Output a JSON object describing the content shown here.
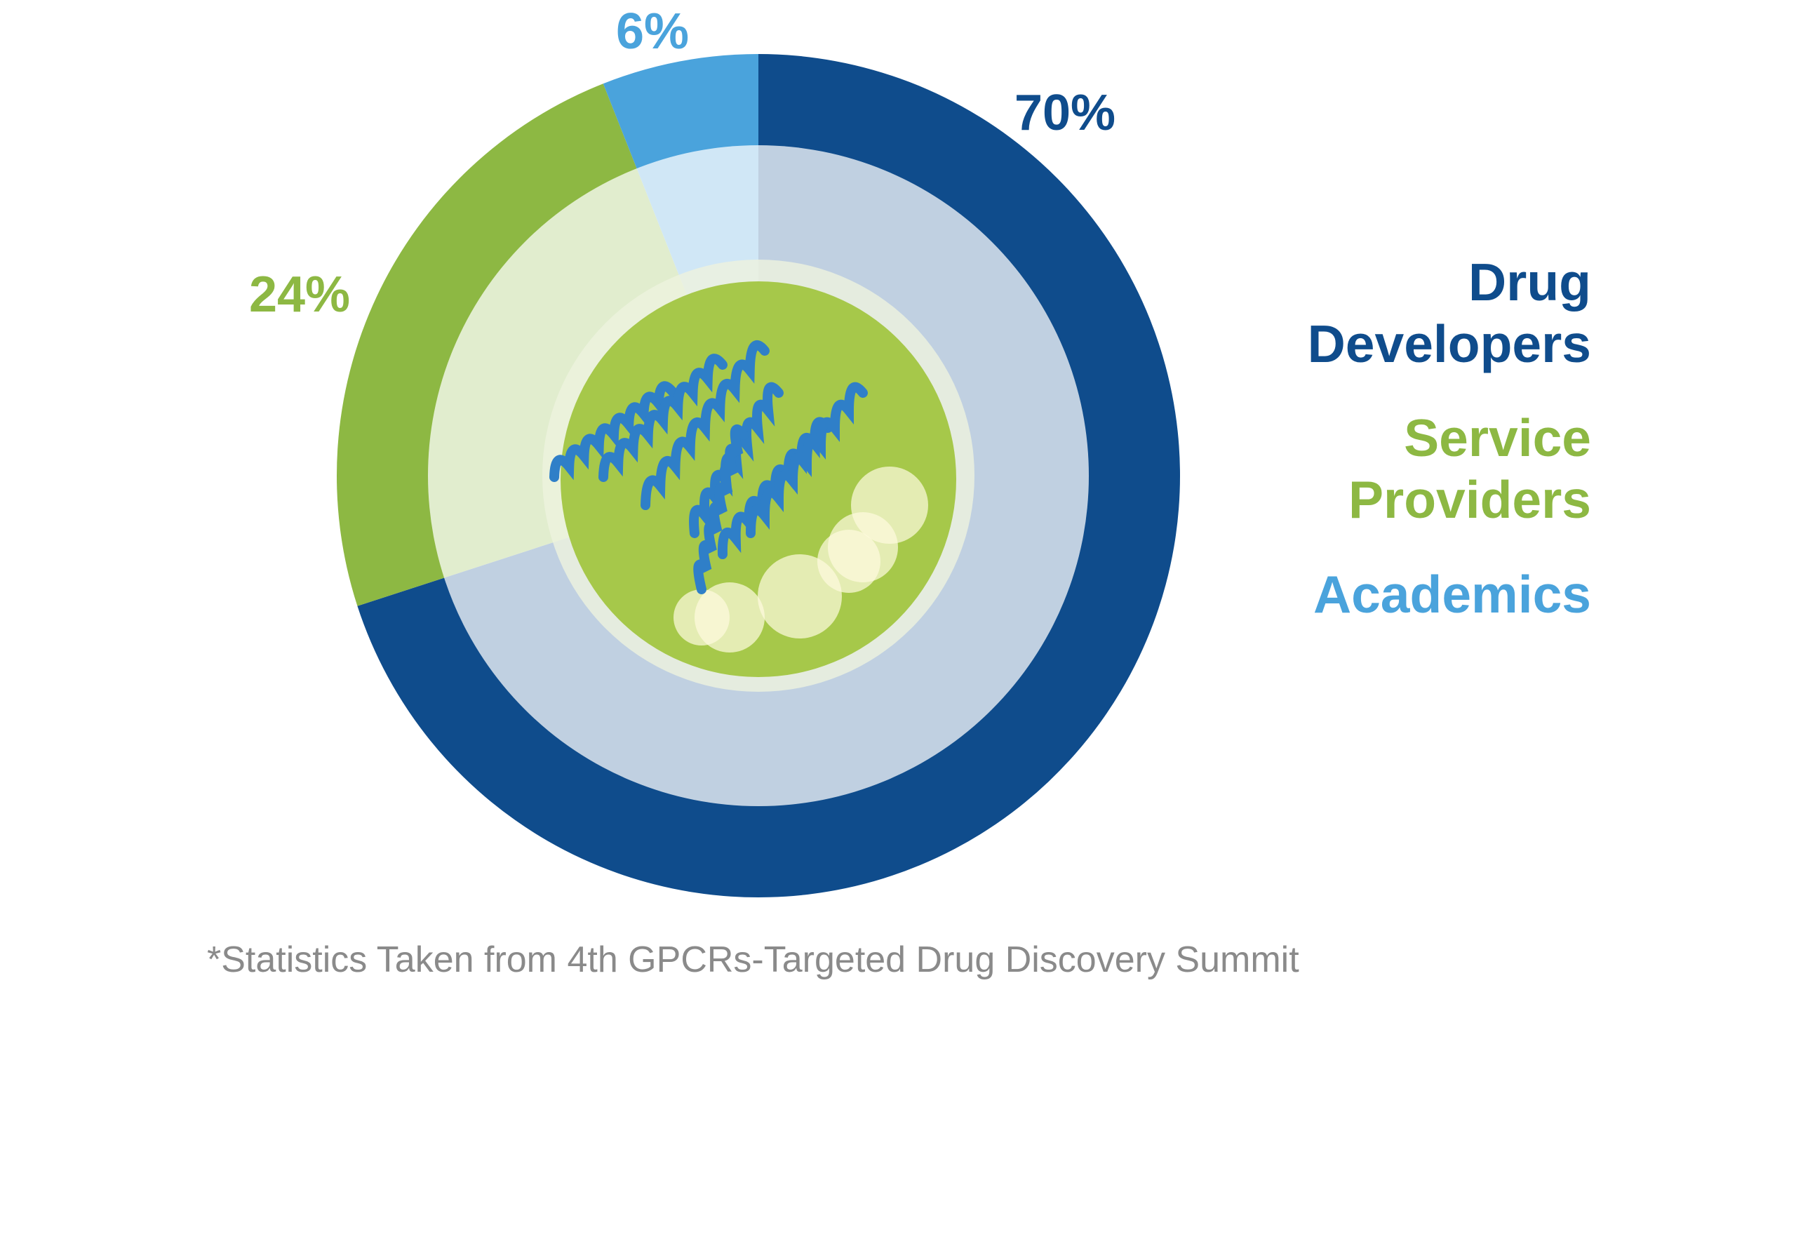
{
  "chart_data": {
    "type": "pie",
    "series": [
      {
        "name": "Drug Developers",
        "color": "#0f4c8c",
        "values": [
          70
        ],
        "value_labels": [
          "70%"
        ]
      },
      {
        "name": "Service Providers",
        "color": "#8db843",
        "values": [
          24
        ],
        "value_labels": [
          "24%"
        ]
      },
      {
        "name": "Academics",
        "color": "#4aa3dc",
        "values": [
          6
        ],
        "value_labels": [
          "6%"
        ]
      }
    ],
    "footnote": "*Statistics Taken from 4th GPCRs-Targeted Drug Discovery Summit"
  }
}
